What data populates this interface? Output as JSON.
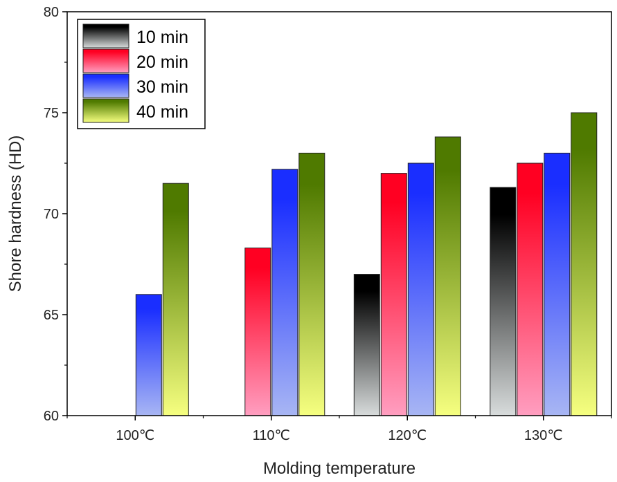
{
  "chart_data": {
    "type": "bar",
    "title": "",
    "xlabel": "Molding temperature",
    "ylabel": "Shore hardness (HD)",
    "categories": [
      "100℃",
      "110℃",
      "120℃",
      "130℃"
    ],
    "ylim": [
      60,
      80
    ],
    "yticks": [
      "60",
      "65",
      "70",
      "75",
      "80"
    ],
    "grid": false,
    "legend_position": "top-left",
    "series": [
      {
        "name": "10 min",
        "values": [
          null,
          null,
          67.0,
          71.3
        ],
        "color_top": "#000000",
        "color_bottom": "#d8dcdc"
      },
      {
        "name": "20 min",
        "values": [
          null,
          68.3,
          72.0,
          72.5
        ],
        "color_top": "#ff0022",
        "color_bottom": "#ff9ec0"
      },
      {
        "name": "30 min",
        "values": [
          66.0,
          72.2,
          72.5,
          73.0
        ],
        "color_top": "#1a2eff",
        "color_bottom": "#a8b6f4"
      },
      {
        "name": "40 min",
        "values": [
          71.5,
          73.0,
          73.8,
          75.0
        ],
        "color_top": "#4f7a00",
        "color_bottom": "#f6ff80"
      }
    ]
  }
}
